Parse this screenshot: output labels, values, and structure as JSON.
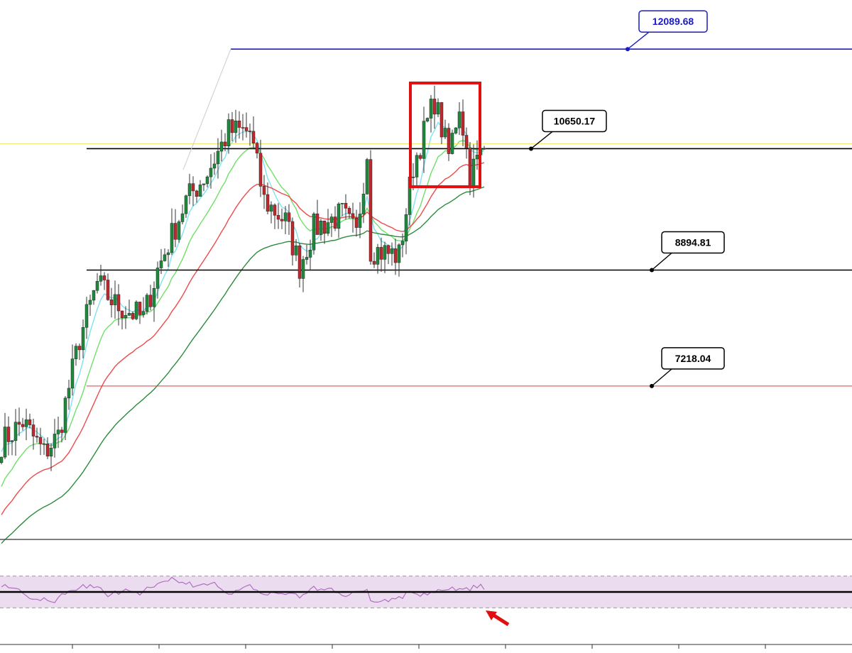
{
  "chart_data": {
    "type": "candlestick",
    "price_axis": {
      "ylim": [
        5000,
        12800
      ],
      "gridlines": false
    },
    "annotations": {
      "levels": [
        {
          "value": 12089.68,
          "label": "12089.68",
          "color": "#1a1acc",
          "label_border": "#1a1acc"
        },
        {
          "value": 10650.17,
          "label": "10650.17",
          "color": "#000000",
          "label_border": "#000000"
        },
        {
          "value": 8894.81,
          "label": "8894.81",
          "color": "#000000",
          "label_border": "#000000"
        },
        {
          "value": 7218.04,
          "label": "7218.04",
          "color": "#e53935",
          "label_border": "#000000"
        }
      ],
      "current_price_line": {
        "value": 10720,
        "color": "#f2e85c"
      },
      "highlight_box": {
        "from_bar": 116,
        "to_bar": 134,
        "low": 10100,
        "high": 11600,
        "color": "#e01010"
      }
    },
    "moving_averages": [
      {
        "period_hint": "fast",
        "color": "#7fe3f0"
      },
      {
        "period_hint": "medium",
        "color": "#6fe06a"
      },
      {
        "period_hint": "slow",
        "color": "#ee4b4b"
      },
      {
        "period_hint": "long",
        "color": "#2e8b3d"
      }
    ],
    "rsi_panel": {
      "overbought_band": [
        30,
        70
      ],
      "midline": 50,
      "band_color": "#ecdcf0",
      "line_color": "#b070c0",
      "arrow_color": "#e01010"
    },
    "candle_colors": {
      "up": "#1e8a3c",
      "down": "#c0282e"
    },
    "x_ticks_count": 9
  }
}
